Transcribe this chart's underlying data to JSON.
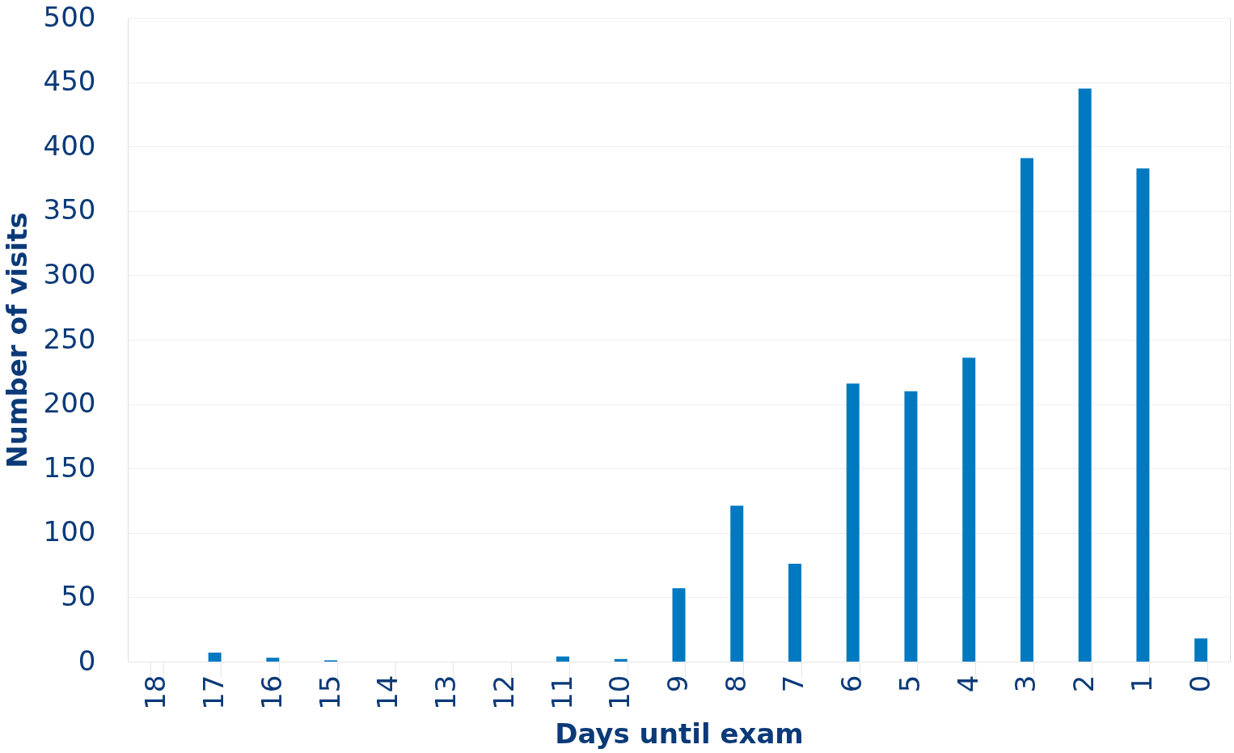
{
  "chart_data": {
    "type": "bar",
    "xlabel": "Days until exam",
    "ylabel": "Number of visits",
    "categories": [
      "18",
      "17",
      "16",
      "15",
      "14",
      "13",
      "12",
      "11",
      "10",
      "9",
      "8",
      "7",
      "6",
      "5",
      "4",
      "3",
      "2",
      "1",
      "0"
    ],
    "values": [
      0,
      7,
      3,
      1,
      0,
      0,
      0,
      4,
      2,
      57,
      121,
      76,
      216,
      210,
      236,
      391,
      445,
      383,
      18
    ],
    "color": "#0079c1",
    "ylim": [
      0,
      500
    ],
    "yticks": [
      0,
      50,
      100,
      150,
      200,
      250,
      300,
      350,
      400,
      450,
      500
    ],
    "grid": "y"
  }
}
